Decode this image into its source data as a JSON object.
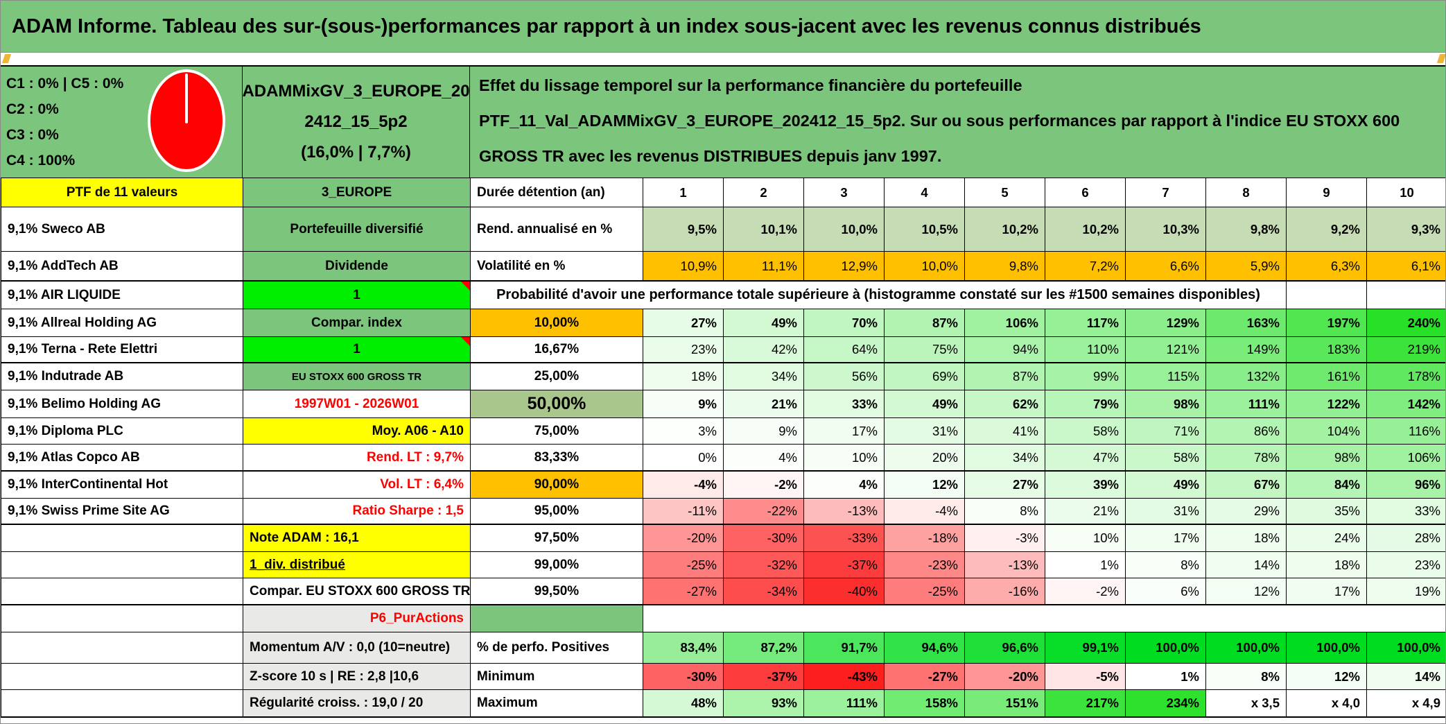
{
  "title": "ADAM Informe. Tableau des sur-(sous-)performances par rapport à un index sous-jacent avec les revenus connus distribués",
  "header": {
    "class_weights": [
      "C1 : 0% | C5 : 0%",
      "C2 : 0%",
      "C3 : 0%",
      "C4 : 100%"
    ],
    "pie": {
      "slice_label": "C4 : 100%",
      "color": "#fe0101"
    },
    "portfolio_name": "ADAMMixGV_3_EUROPE_202412_15_5p2",
    "portfolio_name_lines": [
      "ADAMMixGV_3_EUROPE_20",
      "2412_15_5p2",
      "(16,0% | 7,7%)"
    ],
    "description": "Effet du lissage temporel sur la performance financière du portefeuille PTF_11_Val_ADAMMixGV_3_EUROPE_202412_15_5p2. Sur ou sous performances par rapport à l'indice EU STOXX 600 GROSS TR avec les revenus DISTRIBUES depuis janv 1997."
  },
  "colors": {
    "green": "#7cc57c",
    "bright_green": "#00ee00",
    "sage": "#c6dcb4",
    "sage_dark": "#a9c68c",
    "orange": "#ffc000",
    "yellow": "#ffff00",
    "grey": "#e9e9e7",
    "red": "#ff0000",
    "scale_green_max": "#28e028",
    "scale_red_min": "#fd1e1e",
    "perfo_green_min": "#98ee98",
    "perfo_green_max": "#00dd20"
  },
  "table": {
    "scale": {
      "positive_max": 240,
      "negative_min": -43,
      "perfo_min": 83.4,
      "perfo_max": 100
    },
    "rows": [
      {
        "a": "PTF de 11 valeurs",
        "a_fill": "yellow",
        "a_align": "center",
        "b": "3_EUROPE",
        "b_fill": "green",
        "b_align": "center",
        "c": "Durée détention (an)",
        "cells": [
          "1",
          "2",
          "3",
          "4",
          "5",
          "6",
          "7",
          "8",
          "9",
          "10"
        ],
        "fill": "header",
        "bold": true,
        "center_values": true
      },
      {
        "a": "9,1% Sweco AB",
        "b": "Portefeuille diversifié",
        "b_fill": "green",
        "b_align": "center",
        "c": "Rend. annualisé en %",
        "cells": [
          "9,5%",
          "10,1%",
          "10,0%",
          "10,5%",
          "10,2%",
          "10,2%",
          "10,3%",
          "9,8%",
          "9,2%",
          "9,3%"
        ],
        "fill": "sage",
        "bold": true
      },
      {
        "a": "9,1% AddTech AB",
        "b": "Dividende",
        "b_fill": "green",
        "b_align": "center",
        "c": "Volatilité en %",
        "cells": [
          "10,9%",
          "11,1%",
          "12,9%",
          "10,0%",
          "9,8%",
          "7,2%",
          "6,6%",
          "5,9%",
          "6,3%",
          "6,1%"
        ],
        "fill": "orange",
        "thick": true
      },
      {
        "a": "9,1% AIR LIQUIDE",
        "b": "1",
        "b_fill": "bright",
        "b_align": "center",
        "b_note": true,
        "merged_text": "Probabilité d'avoir une performance totale supérieure à (histogramme constaté sur les #1500 semaines disponibles)"
      },
      {
        "a": "9,1% Allreal Holding AG",
        "b": "Compar. index",
        "b_fill": "green",
        "b_align": "center",
        "c": "10,00%",
        "c_fill": "orange",
        "c_align": "center",
        "cells": [
          "27%",
          "49%",
          "70%",
          "87%",
          "106%",
          "117%",
          "129%",
          "163%",
          "197%",
          "240%"
        ],
        "fill": "scale",
        "bold": true
      },
      {
        "a": "9,1% Terna - Rete Elettri",
        "b": "1",
        "b_fill": "bright",
        "b_align": "center",
        "b_note": true,
        "c": "16,67%",
        "c_align": "center",
        "cells": [
          "23%",
          "42%",
          "64%",
          "75%",
          "94%",
          "110%",
          "121%",
          "149%",
          "183%",
          "219%"
        ],
        "fill": "scale",
        "thick": true
      },
      {
        "a": "9,1% Indutrade AB",
        "b": "EU STOXX 600 GROSS TR",
        "b_fill": "green",
        "b_align": "center",
        "b_small": true,
        "c": "25,00%",
        "c_align": "center",
        "cells": [
          "18%",
          "34%",
          "56%",
          "69%",
          "87%",
          "99%",
          "115%",
          "132%",
          "161%",
          "178%"
        ],
        "fill": "scale"
      },
      {
        "a": "9,1% Belimo Holding AG",
        "b": "1997W01 - 2026W01",
        "b_color": "red",
        "b_align": "center",
        "c": "50,00%",
        "c_fill": "sage2",
        "c_align": "center",
        "c_big": true,
        "cells": [
          "9%",
          "21%",
          "33%",
          "49%",
          "62%",
          "79%",
          "98%",
          "111%",
          "122%",
          "142%"
        ],
        "fill": "scale",
        "bold": true
      },
      {
        "a": "9,1% Diploma PLC",
        "b": "Moy. A06 - A10",
        "b_fill": "yellow",
        "b_align": "right",
        "c": "75,00%",
        "c_align": "center",
        "cells": [
          "3%",
          "9%",
          "17%",
          "31%",
          "41%",
          "58%",
          "71%",
          "86%",
          "104%",
          "116%"
        ],
        "fill": "scale"
      },
      {
        "a": "9,1% Atlas Copco AB",
        "b": "Rend. LT : 9,7%",
        "b_color": "red",
        "b_align": "right",
        "c": "83,33%",
        "c_align": "center",
        "cells": [
          "0%",
          "4%",
          "10%",
          "20%",
          "34%",
          "47%",
          "58%",
          "78%",
          "98%",
          "106%"
        ],
        "fill": "scale",
        "thick": true
      },
      {
        "a": "9,1% InterContinental Hot",
        "b": "Vol. LT : 6,4%",
        "b_color": "red",
        "b_align": "right",
        "c": "90,00%",
        "c_fill": "orange",
        "c_align": "center",
        "cells": [
          "-4%",
          "-2%",
          "4%",
          "12%",
          "27%",
          "39%",
          "49%",
          "67%",
          "84%",
          "96%"
        ],
        "fill": "scale",
        "bold": true
      },
      {
        "a": "9,1% Swiss Prime Site AG",
        "b": "Ratio Sharpe : 1,5",
        "b_color": "red",
        "b_align": "right",
        "c": "95,00%",
        "c_align": "center",
        "cells": [
          "-11%",
          "-22%",
          "-13%",
          "-4%",
          "8%",
          "21%",
          "31%",
          "29%",
          "35%",
          "33%"
        ],
        "fill": "scale",
        "thick": true
      },
      {
        "a": "",
        "b": "Note ADAM : 16,1",
        "b_fill": "yellow",
        "c": "97,50%",
        "c_align": "center",
        "cells": [
          "-20%",
          "-30%",
          "-33%",
          "-18%",
          "-3%",
          "10%",
          "17%",
          "18%",
          "24%",
          "28%"
        ],
        "fill": "scale"
      },
      {
        "a": "",
        "b": "1_div. distribué",
        "b_fill": "yellow",
        "b_underline": true,
        "c": "99,00%",
        "c_align": "center",
        "cells": [
          "-25%",
          "-32%",
          "-37%",
          "-23%",
          "-13%",
          "1%",
          "8%",
          "14%",
          "18%",
          "23%"
        ],
        "fill": "scale"
      },
      {
        "a": "",
        "b": "Compar. EU STOXX 600 GROSS TR",
        "c": "99,50%",
        "c_align": "center",
        "cells": [
          "-27%",
          "-34%",
          "-40%",
          "-25%",
          "-16%",
          "-2%",
          "6%",
          "12%",
          "17%",
          "19%"
        ],
        "fill": "scale",
        "thick": true
      },
      {
        "a": "",
        "b": "P6_PurActions",
        "b_fill": "grey",
        "b_color": "red",
        "b_align": "right",
        "c": "",
        "c_fill": "green",
        "p6": true
      },
      {
        "a": "",
        "b": "Momentum A/V : 0,0 (10=neutre)",
        "b_fill": "grey",
        "c": "% de perfo. Positives",
        "cells": [
          "83,4%",
          "87,2%",
          "91,7%",
          "94,6%",
          "96,6%",
          "99,1%",
          "100,0%",
          "100,0%",
          "100,0%",
          "100,0%"
        ],
        "fill": "perfo",
        "bold": true
      },
      {
        "a": "",
        "b": "Z-score 10 s | RE : 2,8 |10,6",
        "b_fill": "grey",
        "c": "Minimum",
        "cells": [
          "-30%",
          "-37%",
          "-43%",
          "-27%",
          "-20%",
          "-5%",
          "1%",
          "8%",
          "12%",
          "14%"
        ],
        "fill": "scale",
        "bold": true
      },
      {
        "a": "",
        "b": "Régularité croiss. : 19,0 / 20",
        "b_fill": "grey",
        "c": "Maximum",
        "cells": [
          "48%",
          "93%",
          "111%",
          "158%",
          "151%",
          "217%",
          "234%",
          "x 3,5",
          "x 4,0",
          "x 4,9"
        ],
        "fill": "scale",
        "bold": true
      }
    ]
  }
}
